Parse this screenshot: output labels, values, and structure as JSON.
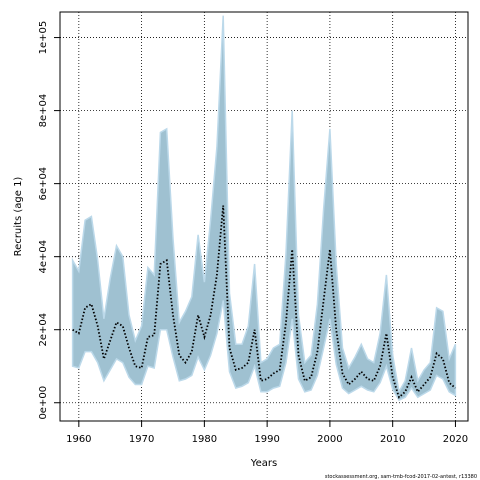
{
  "chart_data": {
    "type": "area",
    "xlabel": "Years",
    "ylabel": "Recruits (age 1)",
    "xlim": [
      1957,
      2022
    ],
    "ylim": [
      -5000,
      107000
    ],
    "xticks": [
      1960,
      1970,
      1980,
      1990,
      2000,
      2010,
      2020
    ],
    "xtick_labels": [
      "1960",
      "1970",
      "1980",
      "1990",
      "2000",
      "2010",
      "2020"
    ],
    "yticks": [
      0,
      20000,
      40000,
      60000,
      80000,
      100000
    ],
    "ytick_labels": [
      "0e+00",
      "2e+04",
      "4e+04",
      "6e+04",
      "8e+04",
      "1e+05"
    ],
    "grid": true,
    "band_color": "#9fc1d1",
    "band_edge_color": "#bcd9ea",
    "line_color": "#000000",
    "years": [
      1959,
      1960,
      1961,
      1962,
      1963,
      1964,
      1965,
      1966,
      1967,
      1968,
      1969,
      1970,
      1971,
      1972,
      1973,
      1974,
      1975,
      1976,
      1977,
      1978,
      1979,
      1980,
      1981,
      1982,
      1983,
      1984,
      1985,
      1986,
      1987,
      1988,
      1989,
      1990,
      1991,
      1992,
      1993,
      1994,
      1995,
      1996,
      1997,
      1998,
      1999,
      2000,
      2001,
      2002,
      2003,
      2004,
      2005,
      2006,
      2007,
      2008,
      2009,
      2010,
      2011,
      2012,
      2013,
      2014,
      2015,
      2016,
      2017,
      2018,
      2019,
      2020
    ],
    "estimate": [
      20000,
      19000,
      26000,
      27000,
      21000,
      12000,
      17000,
      22000,
      21000,
      15000,
      10000,
      9500,
      18000,
      18500,
      38000,
      39000,
      24000,
      13000,
      11000,
      14000,
      24000,
      18000,
      24000,
      35000,
      54000,
      15000,
      9000,
      9500,
      11000,
      20000,
      6000,
      6500,
      8000,
      9000,
      22000,
      42000,
      13000,
      6000,
      7000,
      14000,
      28000,
      42000,
      20000,
      8000,
      5000,
      6500,
      8500,
      6500,
      6000,
      10000,
      19000,
      7000,
      1500,
      3000,
      7000,
      3000,
      5000,
      7000,
      13500,
      12000,
      5500,
      4000
    ],
    "upper": [
      39000,
      36000,
      50000,
      51000,
      39000,
      23000,
      34000,
      43000,
      40000,
      24000,
      17000,
      21000,
      37000,
      35000,
      74000,
      75000,
      45000,
      22000,
      25000,
      29000,
      46000,
      33000,
      50000,
      70000,
      106000,
      30000,
      16000,
      16000,
      21000,
      38000,
      11000,
      12000,
      15000,
      16000,
      41000,
      80000,
      24000,
      11000,
      13000,
      27000,
      53000,
      75000,
      38000,
      15000,
      9500,
      12500,
      16000,
      12000,
      11000,
      19000,
      35000,
      13000,
      3000,
      6000,
      15000,
      6000,
      9000,
      11000,
      26000,
      25000,
      12000,
      16000
    ],
    "lower": [
      10000,
      9500,
      14000,
      14000,
      11000,
      6000,
      9000,
      12000,
      11000,
      7000,
      5000,
      5000,
      10000,
      9500,
      20000,
      20000,
      12500,
      6000,
      6500,
      7500,
      12500,
      9000,
      13000,
      19000,
      28000,
      8500,
      4000,
      4500,
      5500,
      10000,
      3000,
      3000,
      4000,
      4500,
      11000,
      23000,
      6500,
      3000,
      3500,
      7500,
      15000,
      23000,
      10500,
      4000,
      2500,
      3500,
      4500,
      3500,
      3000,
      5500,
      10000,
      3700,
      700,
      1500,
      4000,
      1500,
      2500,
      3500,
      7500,
      6500,
      3000,
      2000
    ]
  },
  "footer_text": "stockassessment.org, sam-tmb-fcod-2017-02-antest, r13380"
}
